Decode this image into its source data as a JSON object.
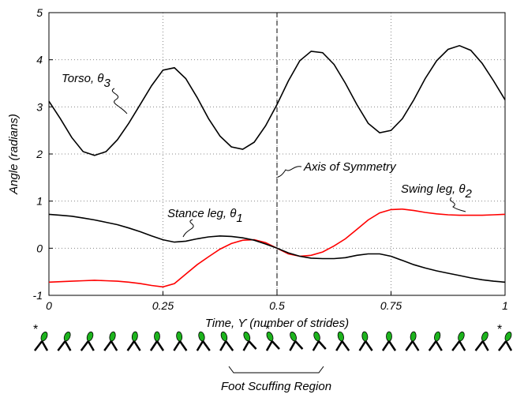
{
  "chart_data": {
    "type": "line",
    "ylabel": "Angle (radians)",
    "xlabel": "Time, ϒ (number of strides)",
    "x": [
      0,
      0.025,
      0.05,
      0.075,
      0.1,
      0.125,
      0.15,
      0.175,
      0.2,
      0.225,
      0.25,
      0.275,
      0.3,
      0.325,
      0.35,
      0.375,
      0.4,
      0.425,
      0.45,
      0.475,
      0.5,
      0.525,
      0.55,
      0.575,
      0.6,
      0.625,
      0.65,
      0.675,
      0.7,
      0.725,
      0.75,
      0.775,
      0.8,
      0.825,
      0.85,
      0.875,
      0.9,
      0.925,
      0.95,
      0.975,
      1
    ],
    "series": [
      {
        "color": "#000000",
        "values": [
          3.12,
          2.75,
          2.35,
          2.05,
          1.97,
          2.05,
          2.3,
          2.65,
          3.05,
          3.45,
          3.78,
          3.83,
          3.6,
          3.2,
          2.75,
          2.38,
          2.15,
          2.1,
          2.25,
          2.6,
          3.05,
          3.55,
          3.98,
          4.18,
          4.15,
          3.9,
          3.5,
          3.05,
          2.65,
          2.45,
          2.5,
          2.75,
          3.15,
          3.6,
          3.98,
          4.22,
          4.3,
          4.2,
          3.92,
          3.55,
          3.15
        ]
      },
      {
        "color": "#ff0000",
        "values": [
          -0.72,
          -0.71,
          -0.7,
          -0.69,
          -0.68,
          -0.69,
          -0.7,
          -0.72,
          -0.75,
          -0.79,
          -0.82,
          -0.75,
          -0.55,
          -0.35,
          -0.18,
          -0.02,
          0.1,
          0.17,
          0.18,
          0.12,
          0.0,
          -0.12,
          -0.17,
          -0.15,
          -0.08,
          0.05,
          0.2,
          0.4,
          0.6,
          0.75,
          0.82,
          0.83,
          0.8,
          0.76,
          0.73,
          0.71,
          0.7,
          0.7,
          0.7,
          0.71,
          0.72
        ]
      },
      {
        "color": "#000000",
        "values": [
          0.72,
          0.7,
          0.68,
          0.64,
          0.6,
          0.55,
          0.5,
          0.43,
          0.35,
          0.26,
          0.18,
          0.13,
          0.15,
          0.2,
          0.24,
          0.26,
          0.25,
          0.22,
          0.17,
          0.09,
          0.0,
          -0.1,
          -0.17,
          -0.21,
          -0.22,
          -0.22,
          -0.2,
          -0.15,
          -0.12,
          -0.12,
          -0.17,
          -0.26,
          -0.35,
          -0.42,
          -0.48,
          -0.53,
          -0.58,
          -0.63,
          -0.67,
          -0.7,
          -0.72
        ]
      }
    ],
    "xlim": [
      0,
      1
    ],
    "xticks": [
      0,
      0.25,
      0.5,
      0.75,
      1
    ],
    "ylim": [
      -1,
      5
    ],
    "yticks": [
      -1,
      0,
      1,
      2,
      3,
      4,
      5
    ],
    "grid": true,
    "symmetry_x": 0.5,
    "annotations": [
      {
        "text": "Torso, θ",
        "sub": "3"
      },
      {
        "text": "Axis of Symmetry"
      },
      {
        "text": "Swing leg, θ",
        "sub": "2"
      },
      {
        "text": "Stance leg, θ",
        "sub": "1"
      }
    ],
    "gait": {
      "marker": "*",
      "region_label": "Foot Scuffing Region"
    }
  }
}
